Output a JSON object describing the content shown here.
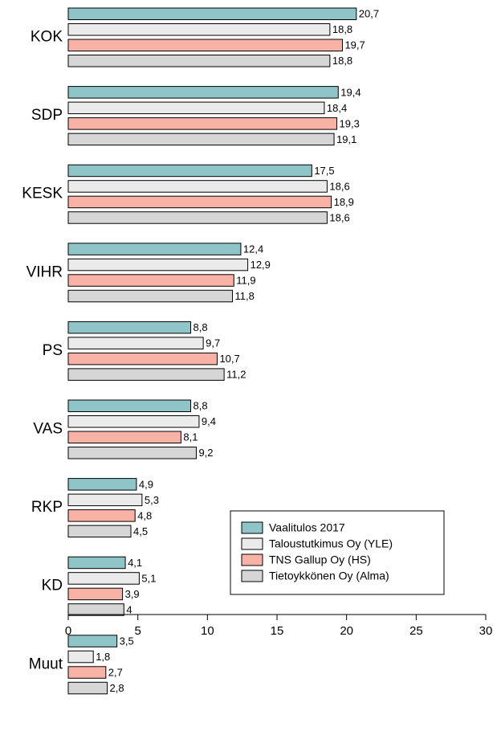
{
  "chart_data": {
    "type": "bar",
    "orientation": "horizontal",
    "categories": [
      "KOK",
      "SDP",
      "KESK",
      "VIHR",
      "PS",
      "VAS",
      "RKP",
      "KD",
      "Muut"
    ],
    "series": [
      {
        "name": "Vaalitulos 2017",
        "color": "#8fc4c8",
        "values": [
          20.7,
          19.4,
          17.5,
          12.4,
          8.8,
          8.8,
          4.9,
          4.1,
          3.5
        ],
        "value_labels": [
          "20,7",
          "19,4",
          "17,5",
          "12,4",
          "8,8",
          "8,8",
          "4,9",
          "4,1",
          "3,5"
        ]
      },
      {
        "name": "Taloustutkimus Oy (YLE)",
        "color": "#ebebeb",
        "values": [
          18.8,
          18.4,
          18.6,
          12.9,
          9.7,
          9.4,
          5.3,
          5.1,
          1.8
        ],
        "value_labels": [
          "18,8",
          "18,4",
          "18,6",
          "12,9",
          "9,7",
          "9,4",
          "5,3",
          "5,1",
          "1,8"
        ]
      },
      {
        "name": "TNS Gallup Oy (HS)",
        "color": "#f9b2a6",
        "values": [
          19.7,
          19.3,
          18.9,
          11.9,
          10.7,
          8.1,
          4.8,
          3.9,
          2.7
        ],
        "value_labels": [
          "19,7",
          "19,3",
          "18,9",
          "11,9",
          "10,7",
          "8,1",
          "4,8",
          "3,9",
          "2,7"
        ]
      },
      {
        "name": "Tietoykkönen Oy (Alma)",
        "color": "#d6d6d6",
        "values": [
          18.8,
          19.1,
          18.6,
          11.8,
          11.2,
          9.2,
          4.5,
          4,
          2.8
        ],
        "value_labels": [
          "18,8",
          "19,1",
          "18,6",
          "11,8",
          "11,2",
          "9,2",
          "4,5",
          "4",
          "2,8"
        ]
      }
    ],
    "xlim": [
      0,
      30
    ],
    "xticks": [
      0,
      5,
      10,
      15,
      20,
      25,
      30
    ],
    "grid": false,
    "legend": "lower right"
  }
}
